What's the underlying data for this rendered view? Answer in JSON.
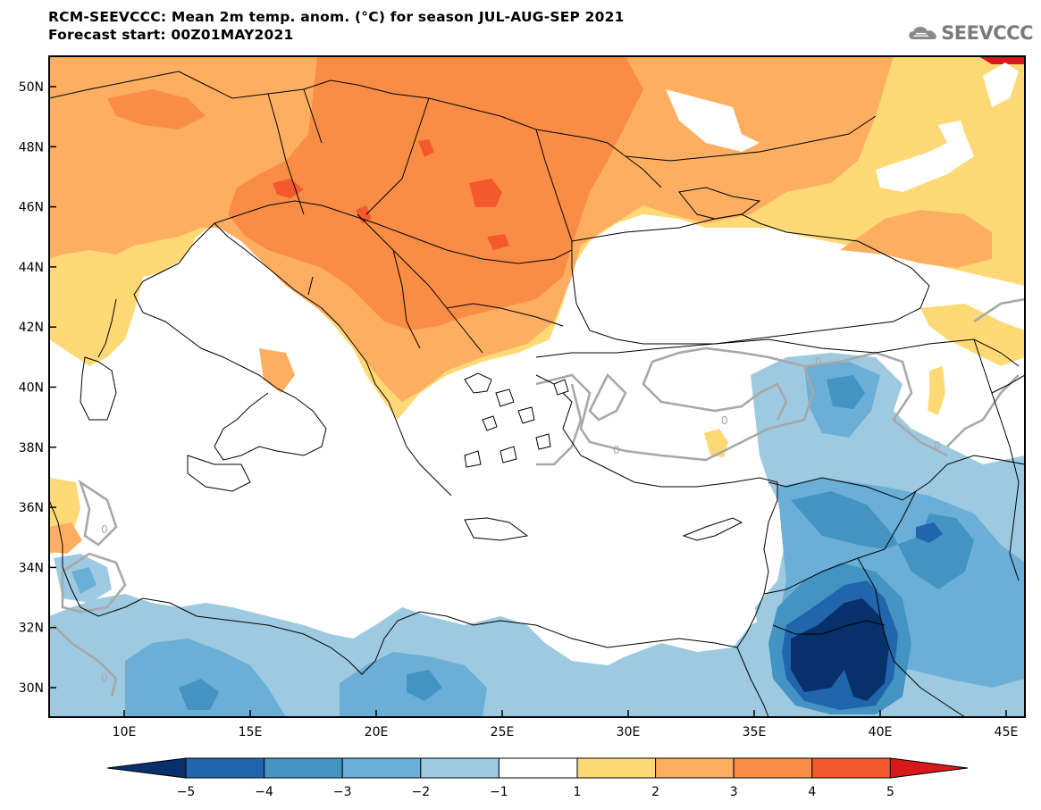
{
  "title": {
    "line1": "RCM-SEEVCCC: Mean 2m temp. anom. (°C) for season JUL-AUG-SEP 2021",
    "line2": "Forecast start: 00Z01MAY2021"
  },
  "logo": {
    "text": "SEEVCCC",
    "icon": "cloud-icon"
  },
  "map": {
    "lat_labels": [
      "50N",
      "48N",
      "46N",
      "44N",
      "42N",
      "40N",
      "38N",
      "36N",
      "34N",
      "32N",
      "30N"
    ],
    "lon_labels": [
      "10E",
      "15E",
      "20E",
      "25E",
      "30E",
      "35E",
      "40E",
      "45E"
    ],
    "contour_label": "0"
  },
  "colorbar": {
    "labels": [
      "−5",
      "−4",
      "−3",
      "−2",
      "−1",
      "1",
      "2",
      "3",
      "4",
      "5"
    ],
    "colors": [
      "#08306b",
      "#2166ac",
      "#4393c3",
      "#6baed6",
      "#9ecae1",
      "#ffffff",
      "#fed976",
      "#fdae61",
      "#f98d45",
      "#f4582d",
      "#d7191c"
    ]
  },
  "palette": {
    "ocean": "#ffffff",
    "warm1": "#fed976",
    "warm2": "#fdae61",
    "warm3": "#f98d45",
    "warm4": "#f4582d",
    "cool1": "#9ecae1",
    "cool2": "#6baed6",
    "cool3": "#4393c3",
    "cool4": "#2166ac",
    "cool5": "#08306b",
    "contour": "#a8a8a8"
  }
}
